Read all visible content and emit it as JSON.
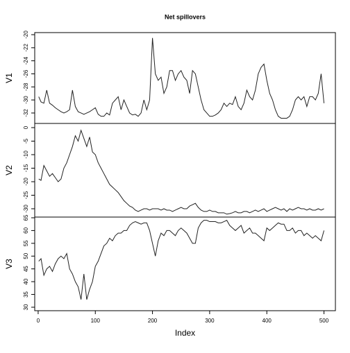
{
  "chart_data": [
    {
      "type": "line",
      "title": "Net spillovers",
      "ylabel": "V1",
      "x": [
        1,
        5,
        10,
        15,
        20,
        25,
        30,
        35,
        40,
        45,
        50,
        55,
        60,
        65,
        70,
        75,
        80,
        85,
        90,
        95,
        100,
        105,
        110,
        115,
        120,
        125,
        130,
        135,
        140,
        145,
        150,
        155,
        160,
        165,
        170,
        175,
        180,
        185,
        190,
        195,
        200,
        205,
        210,
        215,
        220,
        225,
        230,
        235,
        240,
        245,
        250,
        255,
        260,
        265,
        270,
        275,
        280,
        285,
        290,
        295,
        300,
        305,
        310,
        315,
        320,
        325,
        330,
        335,
        340,
        345,
        350,
        355,
        360,
        365,
        370,
        375,
        380,
        385,
        390,
        395,
        400,
        405,
        410,
        415,
        420,
        425,
        430,
        435,
        440,
        445,
        450,
        455,
        460,
        465,
        470,
        475,
        480,
        485,
        490,
        495,
        500
      ],
      "xlim": [
        -6,
        520
      ],
      "ylim": [
        -33.6,
        -19.68
      ],
      "yticks": [
        -32,
        -30,
        -28,
        -26,
        -24,
        -22,
        -20
      ],
      "series": [
        {
          "name": "V1",
          "color": "#222222",
          "values": [
            -29.5,
            -30.3,
            -30.5,
            -28.5,
            -30.5,
            -30.8,
            -31.2,
            -31.5,
            -31.8,
            -32,
            -31.8,
            -31.5,
            -28.5,
            -31,
            -31.8,
            -32,
            -32.2,
            -32,
            -31.8,
            -31.5,
            -31.2,
            -32.2,
            -32.5,
            -32.5,
            -32,
            -32.3,
            -30.5,
            -30,
            -29.5,
            -31.5,
            -30,
            -31,
            -32,
            -32.3,
            -32.2,
            -32.5,
            -32,
            -30,
            -31.5,
            -30,
            -20.5,
            -26,
            -27,
            -26.5,
            -29,
            -28,
            -25.5,
            -25.5,
            -27,
            -26,
            -25.5,
            -26.5,
            -27,
            -29,
            -25.5,
            -26,
            -28,
            -30,
            -31.5,
            -32,
            -32.5,
            -32.5,
            -32.3,
            -32,
            -31.5,
            -30.5,
            -31,
            -30.5,
            -30.7,
            -29.5,
            -31,
            -31.5,
            -30.5,
            -28.5,
            -29.5,
            -30,
            -28.5,
            -26,
            -25,
            -24.5,
            -27,
            -29,
            -30,
            -31.5,
            -32.5,
            -32.8,
            -32.8,
            -32.8,
            -32.5,
            -31.5,
            -30,
            -29.5,
            -30,
            -29.5,
            -31,
            -29.5,
            -29.5,
            -30,
            -29,
            -26,
            -30.5
          ]
        }
      ]
    },
    {
      "type": "line",
      "ylabel": "V2",
      "x": [
        1,
        5,
        10,
        15,
        20,
        25,
        30,
        35,
        40,
        45,
        50,
        55,
        60,
        65,
        70,
        75,
        80,
        85,
        90,
        95,
        100,
        105,
        110,
        115,
        120,
        125,
        130,
        135,
        140,
        145,
        150,
        155,
        160,
        165,
        170,
        175,
        180,
        185,
        190,
        195,
        200,
        205,
        210,
        215,
        220,
        225,
        230,
        235,
        240,
        245,
        250,
        255,
        260,
        265,
        270,
        275,
        280,
        285,
        290,
        295,
        300,
        305,
        310,
        315,
        320,
        325,
        330,
        335,
        340,
        345,
        350,
        355,
        360,
        365,
        370,
        375,
        380,
        385,
        390,
        395,
        400,
        405,
        410,
        415,
        420,
        425,
        430,
        435,
        440,
        445,
        450,
        455,
        460,
        465,
        470,
        475,
        480,
        485,
        490,
        495,
        500
      ],
      "xlim": [
        -6,
        520
      ],
      "ylim": [
        -33.08,
        1.54
      ],
      "yticks": [
        -30,
        -25,
        -20,
        -15,
        -10,
        -5,
        0
      ],
      "series": [
        {
          "name": "V2",
          "color": "#222222",
          "values": [
            -19,
            -19.5,
            -14,
            -16,
            -18,
            -17,
            -18.5,
            -20,
            -19,
            -15,
            -13,
            -10,
            -7,
            -3,
            -5,
            -1,
            -4,
            -7,
            -3.5,
            -9,
            -10,
            -13,
            -15,
            -17,
            -19,
            -21,
            -22,
            -23,
            -24,
            -25.5,
            -27,
            -28,
            -29,
            -29.5,
            -30.5,
            -31,
            -30.5,
            -30,
            -30,
            -30.5,
            -30,
            -30,
            -30,
            -30.5,
            -30,
            -30.5,
            -30.5,
            -31,
            -30.5,
            -30,
            -29.5,
            -30,
            -30,
            -29,
            -28.5,
            -28,
            -29.5,
            -30.5,
            -31,
            -31,
            -30.5,
            -31,
            -31,
            -31.5,
            -31.5,
            -31.5,
            -32,
            -31.8,
            -31.5,
            -31,
            -31.5,
            -31.5,
            -31,
            -31,
            -31.5,
            -31,
            -30.5,
            -31,
            -30.5,
            -30,
            -31,
            -30.5,
            -30,
            -29.5,
            -30,
            -30.5,
            -30,
            -31,
            -30,
            -30.5,
            -30,
            -29.5,
            -30,
            -30,
            -30.5,
            -30,
            -30.5,
            -30.5,
            -30,
            -30.5,
            -30
          ]
        }
      ]
    },
    {
      "type": "line",
      "ylabel": "V3",
      "xlabel": "Index",
      "x": [
        1,
        5,
        10,
        15,
        20,
        25,
        30,
        35,
        40,
        45,
        50,
        55,
        60,
        65,
        70,
        75,
        80,
        85,
        90,
        95,
        100,
        105,
        110,
        115,
        120,
        125,
        130,
        135,
        140,
        145,
        150,
        155,
        160,
        165,
        170,
        175,
        180,
        185,
        190,
        195,
        200,
        205,
        210,
        215,
        220,
        225,
        230,
        235,
        240,
        245,
        250,
        255,
        260,
        265,
        270,
        275,
        280,
        285,
        290,
        295,
        300,
        305,
        310,
        315,
        320,
        325,
        330,
        335,
        340,
        345,
        350,
        355,
        360,
        365,
        370,
        375,
        380,
        385,
        390,
        395,
        400,
        405,
        410,
        415,
        420,
        425,
        430,
        435,
        440,
        445,
        450,
        455,
        460,
        465,
        470,
        475,
        480,
        485,
        490,
        495,
        500
      ],
      "xlim": [
        -6,
        520
      ],
      "xticks": [
        0,
        100,
        200,
        300,
        400,
        500
      ],
      "ylim": [
        28.64,
        65.27
      ],
      "yticks": [
        30,
        35,
        40,
        45,
        50,
        55,
        60,
        65
      ],
      "series": [
        {
          "name": "V3",
          "color": "#222222",
          "values": [
            48,
            49,
            42.5,
            45,
            46,
            44,
            47,
            49,
            50,
            49,
            51,
            45,
            43,
            40,
            38,
            33,
            43,
            33,
            37,
            40,
            46,
            48,
            51,
            54,
            55,
            57,
            56,
            58,
            59,
            59,
            60,
            60,
            62,
            63,
            63.5,
            63,
            62.5,
            63,
            63,
            60,
            55,
            50,
            56,
            59,
            58,
            60,
            60,
            59,
            58,
            60,
            61,
            60,
            59,
            57,
            55,
            55,
            61,
            63,
            64,
            64,
            63.5,
            63.5,
            63.5,
            63,
            63,
            63.5,
            64,
            62,
            61,
            60,
            61,
            62,
            59,
            60,
            61,
            59,
            59,
            58,
            57,
            56,
            61,
            60,
            61,
            62,
            63,
            62.5,
            62.5,
            60,
            60,
            61,
            59,
            60,
            60,
            58,
            59,
            58,
            57,
            58,
            57,
            56,
            60
          ]
        }
      ]
    }
  ]
}
